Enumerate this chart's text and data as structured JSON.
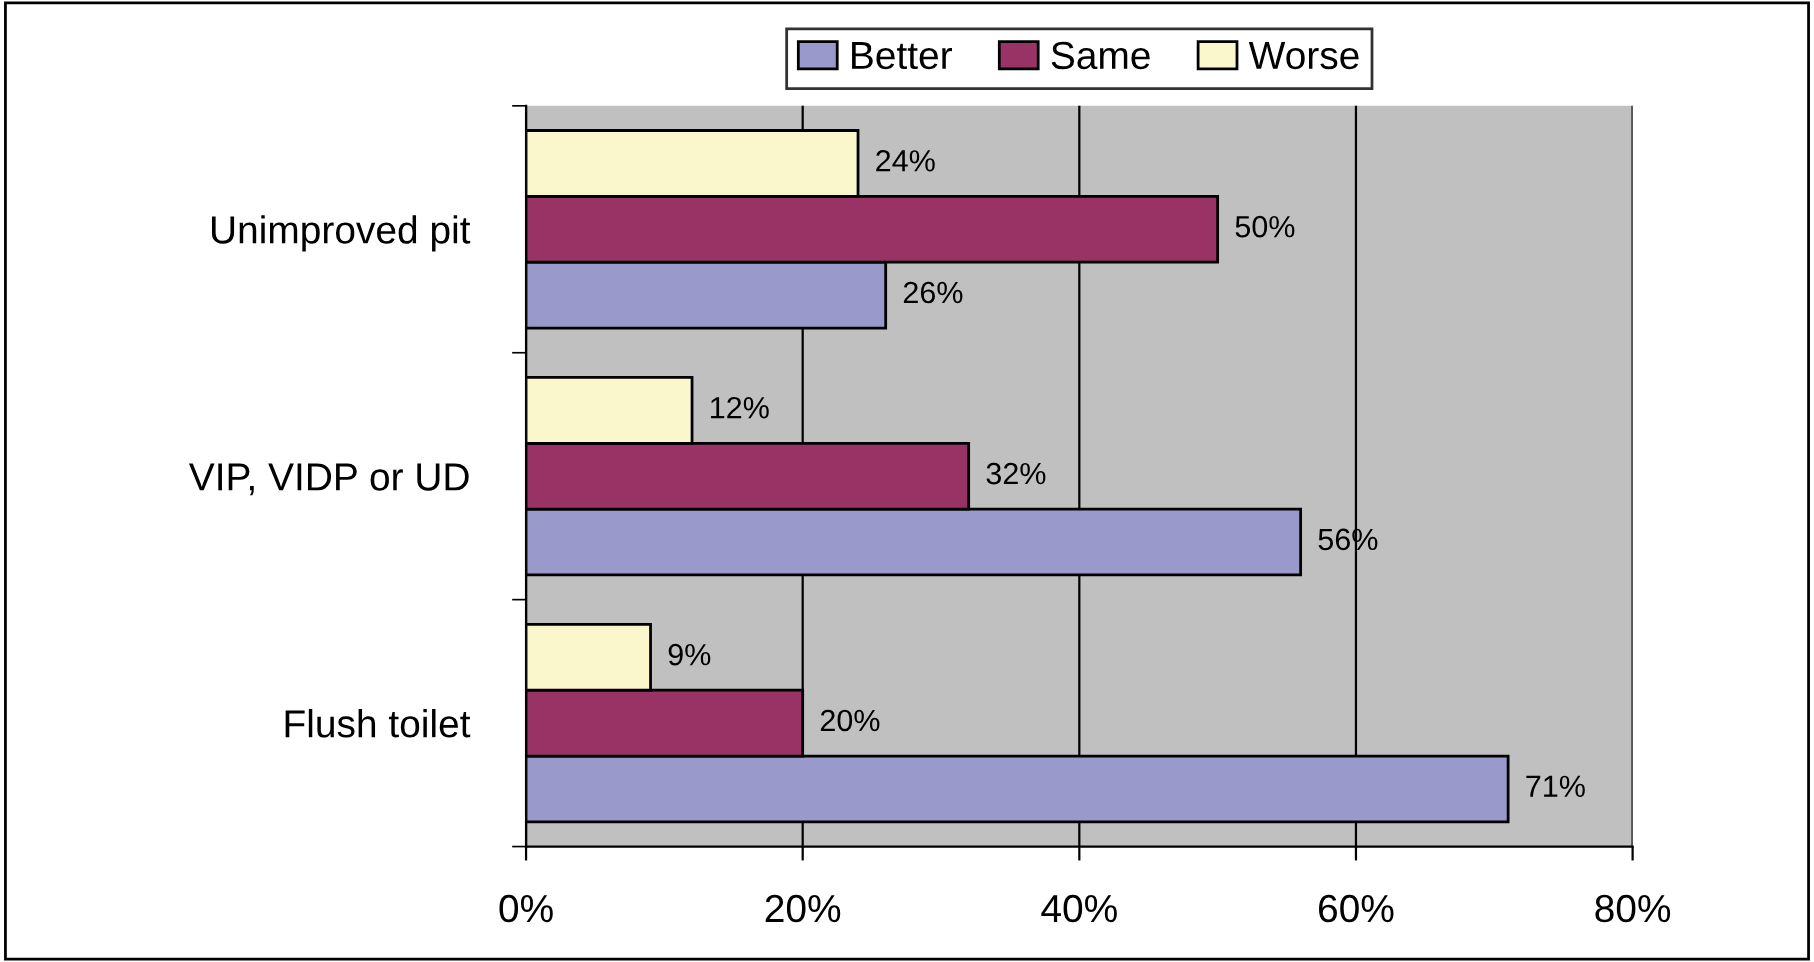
{
  "chart_data": {
    "type": "bar",
    "orientation": "horizontal",
    "categories": [
      "Unimproved pit",
      "VIP, VIDP or UD",
      "Flush toilet"
    ],
    "series": [
      {
        "name": "Better",
        "color": "#9999cc",
        "values": [
          26,
          56,
          71
        ],
        "value_labels": [
          "26%",
          "56%",
          "71%"
        ]
      },
      {
        "name": "Same",
        "color": "#993366",
        "values": [
          50,
          32,
          20
        ],
        "value_labels": [
          "50%",
          "32%",
          "20%"
        ]
      },
      {
        "name": "Worse",
        "color": "#fbf7cc",
        "values": [
          24,
          12,
          9
        ],
        "value_labels": [
          "24%",
          "12%",
          "9%"
        ]
      }
    ],
    "xlim": [
      0,
      80
    ],
    "xticks": [
      {
        "value": 0,
        "label": "0%"
      },
      {
        "value": 20,
        "label": "20%"
      },
      {
        "value": 40,
        "label": "40%"
      },
      {
        "value": 60,
        "label": "60%"
      },
      {
        "value": 80,
        "label": "80%"
      }
    ],
    "grid": "x",
    "legend": "top"
  }
}
